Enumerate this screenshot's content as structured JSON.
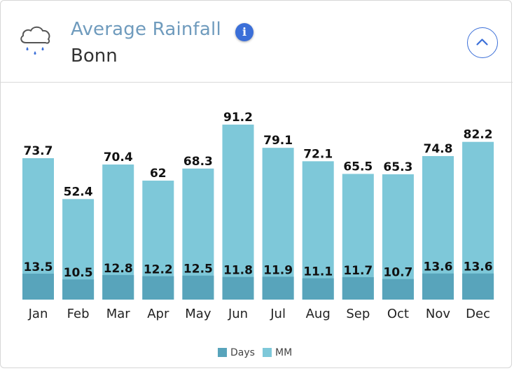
{
  "header": {
    "title": "Average Rainfall",
    "location": "Bonn",
    "info_label": "i"
  },
  "icons": {
    "weather": "rain-cloud-icon",
    "info": "info-icon",
    "collapse": "chevron-up-icon"
  },
  "colors": {
    "mm": "#7ec8d9",
    "days": "#58a4bb",
    "title": "#6f9bbd",
    "accent": "#3b6fd8"
  },
  "chart_data": {
    "type": "bar",
    "title": "Average Rainfall",
    "categories": [
      "Jan",
      "Feb",
      "Mar",
      "Apr",
      "May",
      "Jun",
      "Jul",
      "Aug",
      "Sep",
      "Oct",
      "Nov",
      "Dec"
    ],
    "series": [
      {
        "name": "MM",
        "values": [
          73.7,
          52.4,
          70.4,
          62,
          68.3,
          91.2,
          79.1,
          72.1,
          65.5,
          65.3,
          74.8,
          82.2
        ]
      },
      {
        "name": "Days",
        "values": [
          13.5,
          10.5,
          12.8,
          12.2,
          12.5,
          11.8,
          11.9,
          11.1,
          11.7,
          10.7,
          13.6,
          13.6
        ]
      }
    ],
    "legend": [
      "Days",
      "MM"
    ],
    "legend_position": "bottom",
    "ylim": [
      0,
      91.2
    ],
    "grid": false
  }
}
